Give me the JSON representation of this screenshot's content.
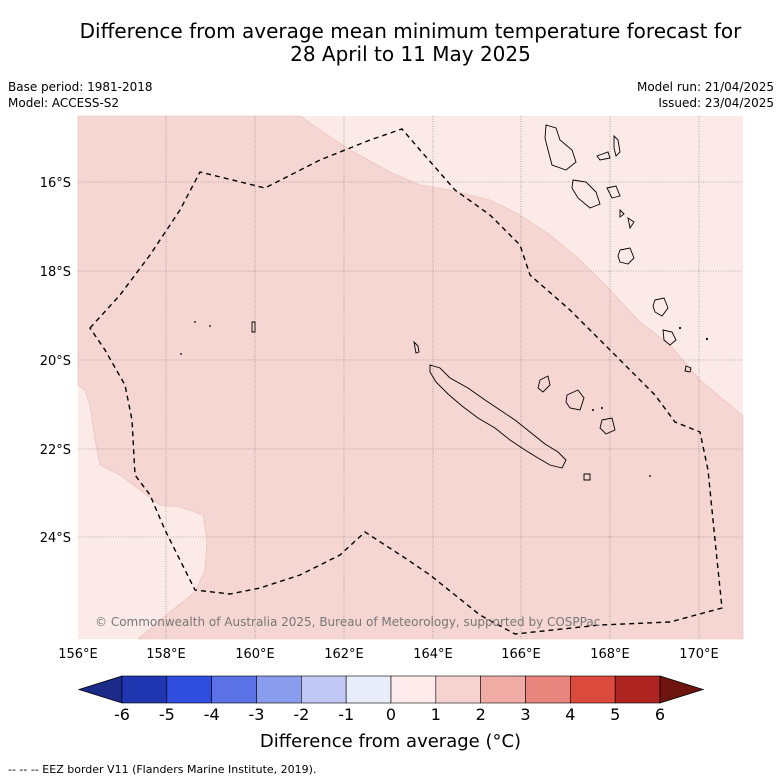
{
  "title": {
    "line1": "Difference from average mean minimum temperature forecast for",
    "line2": "28 April to 11 May 2025"
  },
  "meta": {
    "base_period": "Base period: 1981-2018",
    "model": "Model: ACCESS-S2",
    "model_run": "Model run: 21/04/2025",
    "issued": "Issued: 23/04/2025"
  },
  "map": {
    "lat_labels": [
      "16°S",
      "18°S",
      "20°S",
      "22°S",
      "24°S"
    ],
    "lon_labels": [
      "156°E",
      "158°E",
      "160°E",
      "162°E",
      "164°E",
      "166°E",
      "168°E",
      "170°E"
    ],
    "copyright": "© Commonwealth of Australia 2025, Bureau of Meteorology, supported by COSPPac",
    "fill_colors": {
      "light": "#fceae8",
      "medium": "#f6d6d3",
      "coastline": "#000000"
    }
  },
  "colorbar": {
    "title": "Difference from average (°C)",
    "ticks": [
      "-6",
      "-5",
      "-4",
      "-3",
      "-2",
      "-1",
      "0",
      "1",
      "2",
      "3",
      "4",
      "5",
      "6"
    ],
    "colors": [
      "#1c2a8a",
      "#2035b0",
      "#2f4ee0",
      "#5a72e6",
      "#8a9ced",
      "#c1c8f4",
      "#e8ecfb",
      "#fdeceb",
      "#f6d3d0",
      "#f0aba5",
      "#e8857c",
      "#dc4a3e",
      "#ad2420",
      "#6e1510"
    ]
  },
  "footnote": "--  --  -- EEZ border V11 (Flanders Marine Institute, 2019)."
}
